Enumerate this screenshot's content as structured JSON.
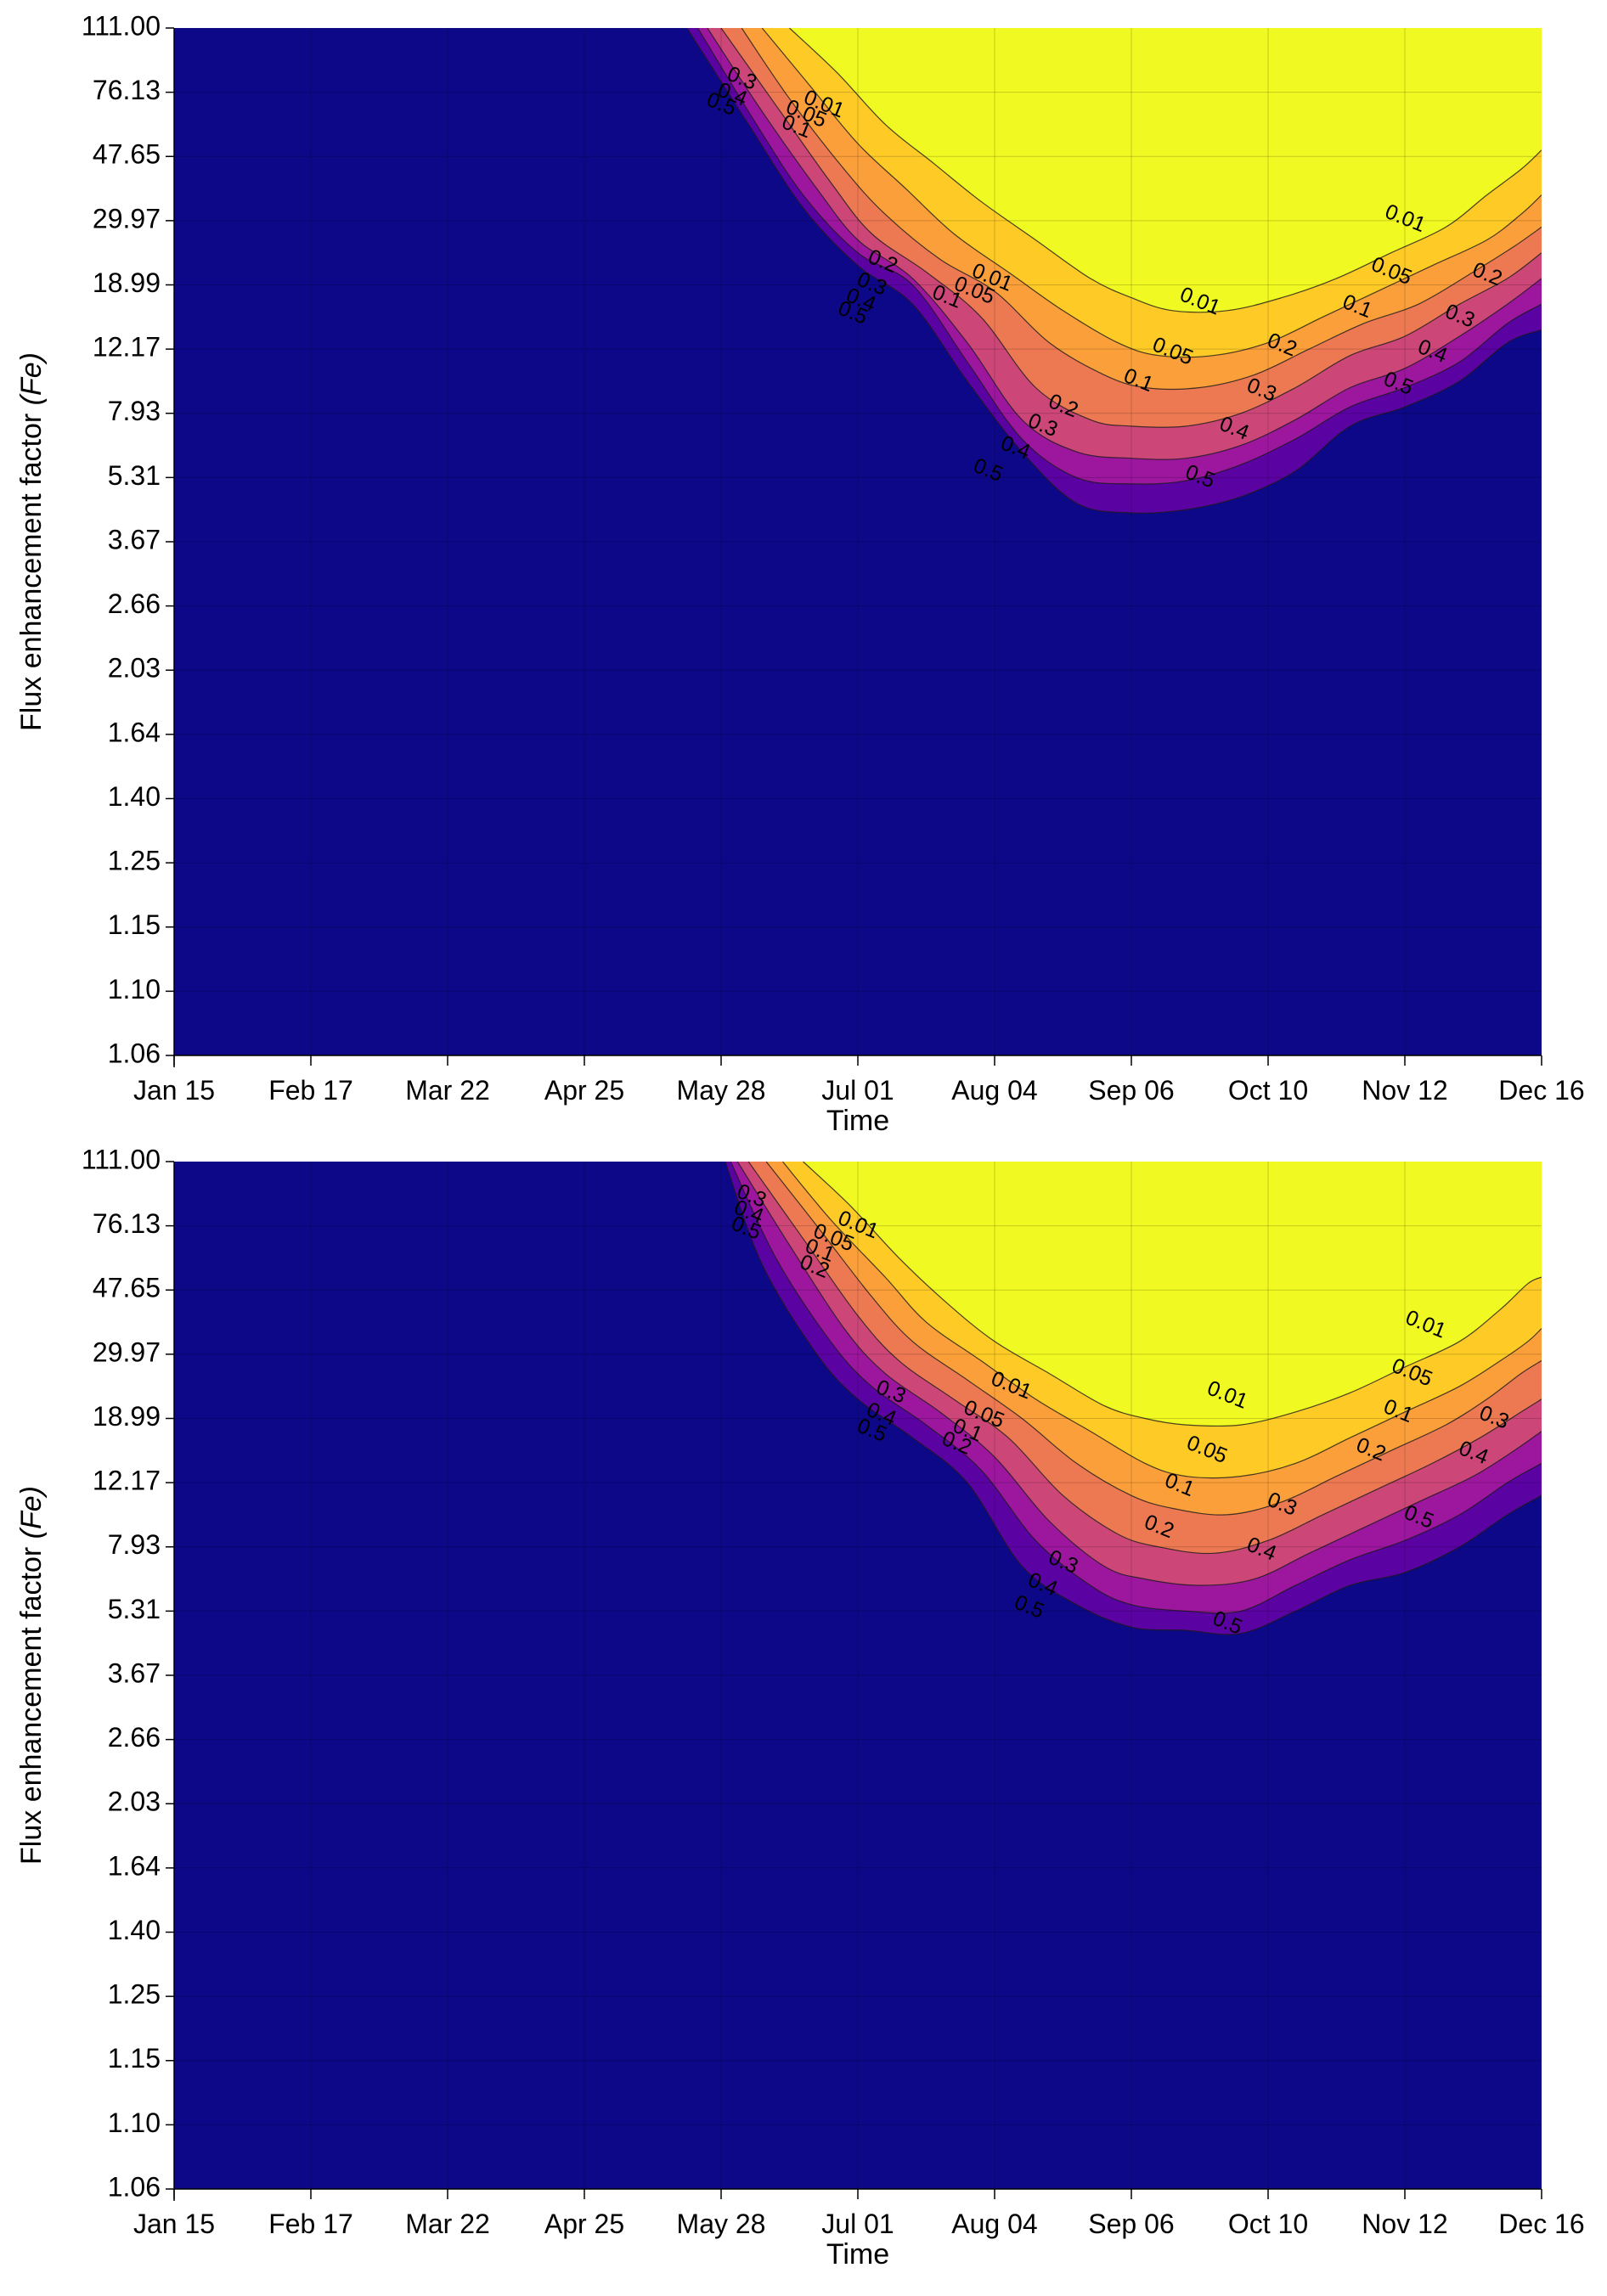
{
  "chart_data": [
    {
      "type": "contour",
      "xlabel": "Time",
      "ylabel": "Flux  enhancement  factor  ",
      "ylabel_var": "(Fe)",
      "x_ticks": [
        "Jan 15",
        "Feb 17",
        "Mar 22",
        "Apr 25",
        "May 28",
        "Jul 01",
        "Aug 04",
        "Sep 06",
        "Oct 10",
        "Nov 12",
        "Dec 16"
      ],
      "y_ticks": [
        "111.00",
        "76.13",
        "47.65",
        "29.97",
        "18.99",
        "12.17",
        "7.93",
        "5.31",
        "3.67",
        "2.66",
        "2.03",
        "1.64",
        "1.40",
        "1.25",
        "1.15",
        "1.10",
        "1.06"
      ],
      "y_scale": "nonlinear (tick labels evenly spaced)",
      "grid": true,
      "contour_levels": [
        0.5,
        0.4,
        0.3,
        0.2,
        0.1,
        0.05,
        0.01
      ],
      "fill_colors": [
        "#0d0887",
        "#5b02a3",
        "#9c179e",
        "#cc4778",
        "#ed7953",
        "#fb9f3a",
        "#fdca26",
        "#f0f921"
      ],
      "contour_boundaries": [
        {
          "level": 0.5,
          "x_idx": [
            3.75,
            4.2,
            4.6,
            5.0,
            5.4,
            5.8,
            6.2,
            6.6,
            7.0,
            7.4,
            7.8,
            8.2,
            8.6,
            9.0,
            9.4,
            9.75,
            10.0
          ],
          "y_idx": [
            0.0,
            1.5,
            2.8,
            3.7,
            4.3,
            5.5,
            6.6,
            7.4,
            7.55,
            7.5,
            7.3,
            6.9,
            6.2,
            5.9,
            5.5,
            4.9,
            4.7
          ]
        },
        {
          "level": 0.4,
          "x_idx": [
            3.83,
            4.2,
            4.6,
            5.0,
            5.4,
            5.8,
            6.2,
            6.6,
            7.0,
            7.4,
            7.8,
            8.2,
            8.6,
            9.0,
            9.4,
            9.75,
            10.0
          ],
          "y_idx": [
            0.0,
            1.3,
            2.6,
            3.5,
            4.0,
            5.2,
            6.4,
            7.0,
            7.1,
            7.05,
            6.8,
            6.4,
            5.9,
            5.6,
            5.2,
            4.6,
            4.3
          ]
        },
        {
          "level": 0.3,
          "x_idx": [
            3.9,
            4.3,
            4.7,
            5.0,
            5.4,
            5.8,
            6.2,
            6.6,
            7.0,
            7.4,
            7.8,
            8.2,
            8.6,
            9.0,
            9.4,
            9.75,
            10.0
          ],
          "y_idx": [
            0.0,
            1.3,
            2.5,
            3.3,
            3.9,
            4.9,
            6.1,
            6.6,
            6.7,
            6.7,
            6.5,
            6.1,
            5.6,
            5.3,
            4.8,
            4.3,
            3.9
          ]
        },
        {
          "level": 0.2,
          "x_idx": [
            4.0,
            4.4,
            4.8,
            5.1,
            5.5,
            5.9,
            6.3,
            6.7,
            7.0,
            7.4,
            7.8,
            8.2,
            8.6,
            9.0,
            9.4,
            9.75,
            10.0
          ],
          "y_idx": [
            0.0,
            1.2,
            2.4,
            3.2,
            3.8,
            4.5,
            5.6,
            6.1,
            6.2,
            6.2,
            6.0,
            5.6,
            5.1,
            4.8,
            4.3,
            3.9,
            3.5
          ]
        },
        {
          "level": 0.1,
          "x_idx": [
            4.15,
            4.5,
            4.9,
            5.2,
            5.6,
            6.0,
            6.4,
            6.8,
            7.1,
            7.5,
            7.9,
            8.3,
            8.7,
            9.1,
            9.5,
            9.8,
            10.0
          ],
          "y_idx": [
            0.0,
            1.1,
            2.2,
            2.9,
            3.6,
            4.1,
            4.9,
            5.4,
            5.6,
            5.6,
            5.4,
            5.0,
            4.6,
            4.3,
            3.8,
            3.4,
            3.1
          ]
        },
        {
          "level": 0.05,
          "x_idx": [
            4.3,
            4.65,
            5.0,
            5.35,
            5.7,
            6.1,
            6.5,
            6.9,
            7.2,
            7.6,
            8.0,
            8.4,
            8.8,
            9.2,
            9.6,
            9.85,
            10.0
          ],
          "y_idx": [
            0.0,
            0.9,
            1.8,
            2.5,
            3.2,
            3.8,
            4.4,
            4.9,
            5.1,
            5.1,
            4.9,
            4.5,
            4.1,
            3.7,
            3.3,
            2.9,
            2.6
          ]
        },
        {
          "level": 0.01,
          "x_idx": [
            4.5,
            4.85,
            5.2,
            5.55,
            5.9,
            6.3,
            6.7,
            7.0,
            7.3,
            7.7,
            8.1,
            8.5,
            8.9,
            9.3,
            9.6,
            9.85,
            10.0
          ],
          "y_idx": [
            0.0,
            0.7,
            1.5,
            2.1,
            2.7,
            3.3,
            3.9,
            4.2,
            4.4,
            4.4,
            4.2,
            3.9,
            3.5,
            3.1,
            2.6,
            2.2,
            1.9
          ]
        }
      ],
      "contour_labels": [
        {
          "text": "0.01",
          "x_idx": 4.75,
          "y_idx": 1.2
        },
        {
          "text": "0.05",
          "x_idx": 4.62,
          "y_idx": 1.35
        },
        {
          "text": "0.1",
          "x_idx": 4.55,
          "y_idx": 1.55
        },
        {
          "text": "0.3",
          "x_idx": 4.15,
          "y_idx": 0.8
        },
        {
          "text": "0.4",
          "x_idx": 4.08,
          "y_idx": 1.05
        },
        {
          "text": "0.5",
          "x_idx": 4.0,
          "y_idx": 1.2
        },
        {
          "text": "0.2",
          "x_idx": 5.18,
          "y_idx": 3.65
        },
        {
          "text": "0.3",
          "x_idx": 5.1,
          "y_idx": 4.0
        },
        {
          "text": "0.4",
          "x_idx": 5.02,
          "y_idx": 4.25
        },
        {
          "text": "0.5",
          "x_idx": 4.96,
          "y_idx": 4.45
        },
        {
          "text": "0.01",
          "x_idx": 5.98,
          "y_idx": 3.9
        },
        {
          "text": "0.05",
          "x_idx": 5.85,
          "y_idx": 4.1
        },
        {
          "text": "0.1",
          "x_idx": 5.65,
          "y_idx": 4.2
        },
        {
          "text": "0.01",
          "x_idx": 7.5,
          "y_idx": 4.27
        },
        {
          "text": "0.05",
          "x_idx": 7.3,
          "y_idx": 5.05
        },
        {
          "text": "0.1",
          "x_idx": 7.05,
          "y_idx": 5.5
        },
        {
          "text": "0.2",
          "x_idx": 6.5,
          "y_idx": 5.9
        },
        {
          "text": "0.3",
          "x_idx": 6.35,
          "y_idx": 6.2
        },
        {
          "text": "0.4",
          "x_idx": 6.15,
          "y_idx": 6.55
        },
        {
          "text": "0.5",
          "x_idx": 5.95,
          "y_idx": 6.9
        },
        {
          "text": "0.2",
          "x_idx": 8.1,
          "y_idx": 4.95
        },
        {
          "text": "0.3",
          "x_idx": 7.95,
          "y_idx": 5.65
        },
        {
          "text": "0.4",
          "x_idx": 7.75,
          "y_idx": 6.25
        },
        {
          "text": "0.5",
          "x_idx": 7.5,
          "y_idx": 7.0
        },
        {
          "text": "0.01",
          "x_idx": 9.0,
          "y_idx": 2.98
        },
        {
          "text": "0.05",
          "x_idx": 8.9,
          "y_idx": 3.8
        },
        {
          "text": "0.1",
          "x_idx": 8.65,
          "y_idx": 4.35
        },
        {
          "text": "0.2",
          "x_idx": 9.6,
          "y_idx": 3.85
        },
        {
          "text": "0.3",
          "x_idx": 9.4,
          "y_idx": 4.5
        },
        {
          "text": "0.4",
          "x_idx": 9.2,
          "y_idx": 5.05
        },
        {
          "text": "0.5",
          "x_idx": 8.95,
          "y_idx": 5.55
        }
      ]
    },
    {
      "type": "contour",
      "xlabel": "Time",
      "ylabel": "Flux  enhancement  factor  ",
      "ylabel_var": "(Fe)",
      "x_ticks": [
        "Jan 15",
        "Feb 17",
        "Mar 22",
        "Apr 25",
        "May 28",
        "Jul 01",
        "Aug 04",
        "Sep 06",
        "Oct 10",
        "Nov 12",
        "Dec 16"
      ],
      "y_ticks": [
        "111.00",
        "76.13",
        "47.65",
        "29.97",
        "18.99",
        "12.17",
        "7.93",
        "5.31",
        "3.67",
        "2.66",
        "2.03",
        "1.64",
        "1.40",
        "1.25",
        "1.15",
        "1.10",
        "1.06"
      ],
      "y_scale": "nonlinear (tick labels evenly spaced)",
      "grid": true,
      "contour_levels": [
        0.5,
        0.4,
        0.3,
        0.2,
        0.1,
        0.05,
        0.01
      ],
      "fill_colors": [
        "#0d0887",
        "#5b02a3",
        "#9c179e",
        "#cc4778",
        "#ed7953",
        "#fb9f3a",
        "#fdca26",
        "#f0f921"
      ],
      "contour_boundaries": [
        {
          "level": 0.5,
          "x_idx": [
            4.03,
            4.3,
            4.7,
            5.0,
            5.4,
            5.8,
            6.2,
            6.6,
            7.0,
            7.4,
            7.8,
            8.2,
            8.6,
            9.0,
            9.4,
            9.75,
            10.0
          ],
          "y_idx": [
            0.0,
            1.6,
            3.0,
            3.7,
            4.3,
            5.0,
            6.3,
            6.9,
            7.25,
            7.3,
            7.35,
            7.0,
            6.6,
            6.4,
            6.0,
            5.5,
            5.2
          ]
        },
        {
          "level": 0.4,
          "x_idx": [
            4.07,
            4.4,
            4.8,
            5.1,
            5.5,
            5.9,
            6.3,
            6.7,
            7.0,
            7.4,
            7.8,
            8.2,
            8.6,
            9.0,
            9.4,
            9.75,
            10.0
          ],
          "y_idx": [
            0.0,
            1.5,
            2.8,
            3.5,
            4.1,
            4.8,
            5.9,
            6.6,
            6.9,
            7.0,
            7.0,
            6.6,
            6.2,
            5.9,
            5.5,
            5.0,
            4.7
          ]
        },
        {
          "level": 0.3,
          "x_idx": [
            4.12,
            4.5,
            4.9,
            5.2,
            5.6,
            6.0,
            6.4,
            6.8,
            7.1,
            7.5,
            7.9,
            8.3,
            8.7,
            9.1,
            9.5,
            9.8,
            10.0
          ],
          "y_idx": [
            0.0,
            1.3,
            2.6,
            3.3,
            3.9,
            4.6,
            5.6,
            6.3,
            6.5,
            6.6,
            6.5,
            6.1,
            5.7,
            5.3,
            4.9,
            4.5,
            4.2
          ]
        },
        {
          "level": 0.2,
          "x_idx": [
            4.2,
            4.6,
            5.0,
            5.3,
            5.7,
            6.1,
            6.5,
            6.9,
            7.2,
            7.6,
            8.0,
            8.4,
            8.8,
            9.2,
            9.55,
            9.85,
            10.0
          ],
          "y_idx": [
            0.0,
            1.2,
            2.4,
            3.1,
            3.7,
            4.3,
            5.2,
            5.8,
            6.0,
            6.1,
            5.9,
            5.5,
            5.1,
            4.7,
            4.3,
            3.9,
            3.7
          ]
        },
        {
          "level": 0.1,
          "x_idx": [
            4.33,
            4.7,
            5.1,
            5.4,
            5.8,
            6.2,
            6.6,
            7.0,
            7.3,
            7.7,
            8.1,
            8.5,
            8.9,
            9.3,
            9.6,
            9.85,
            10.0
          ],
          "y_idx": [
            0.0,
            1.0,
            2.1,
            2.8,
            3.4,
            4.0,
            4.7,
            5.2,
            5.4,
            5.5,
            5.3,
            4.9,
            4.5,
            4.1,
            3.7,
            3.3,
            3.1
          ]
        },
        {
          "level": 0.05,
          "x_idx": [
            4.45,
            4.8,
            5.2,
            5.5,
            5.9,
            6.3,
            6.7,
            7.1,
            7.4,
            7.8,
            8.2,
            8.6,
            9.0,
            9.4,
            9.7,
            9.9,
            10.0
          ],
          "y_idx": [
            0.0,
            0.9,
            1.8,
            2.5,
            3.1,
            3.7,
            4.2,
            4.7,
            4.9,
            4.9,
            4.7,
            4.3,
            3.9,
            3.5,
            3.1,
            2.8,
            2.6
          ]
        },
        {
          "level": 0.01,
          "x_idx": [
            4.6,
            4.95,
            5.3,
            5.65,
            6.0,
            6.4,
            6.8,
            7.1,
            7.4,
            7.8,
            8.2,
            8.6,
            9.0,
            9.4,
            9.7,
            9.9,
            10.0
          ],
          "y_idx": [
            0.0,
            0.7,
            1.5,
            2.2,
            2.8,
            3.3,
            3.8,
            4.0,
            4.1,
            4.1,
            3.9,
            3.6,
            3.2,
            2.8,
            2.3,
            1.9,
            1.8
          ]
        }
      ],
      "contour_labels": [
        {
          "text": "0.01",
          "x_idx": 5.0,
          "y_idx": 1.0
        },
        {
          "text": "0.05",
          "x_idx": 4.82,
          "y_idx": 1.2
        },
        {
          "text": "0.1",
          "x_idx": 4.72,
          "y_idx": 1.4
        },
        {
          "text": "0.2",
          "x_idx": 4.68,
          "y_idx": 1.65
        },
        {
          "text": "0.3",
          "x_idx": 4.22,
          "y_idx": 0.55
        },
        {
          "text": "0.4",
          "x_idx": 4.2,
          "y_idx": 0.8
        },
        {
          "text": "0.5",
          "x_idx": 4.18,
          "y_idx": 1.05
        },
        {
          "text": "0.3",
          "x_idx": 5.24,
          "y_idx": 3.6
        },
        {
          "text": "0.4",
          "x_idx": 5.17,
          "y_idx": 3.95
        },
        {
          "text": "0.5",
          "x_idx": 5.1,
          "y_idx": 4.2
        },
        {
          "text": "0.01",
          "x_idx": 6.12,
          "y_idx": 3.5
        },
        {
          "text": "0.05",
          "x_idx": 5.92,
          "y_idx": 3.95
        },
        {
          "text": "0.1",
          "x_idx": 5.8,
          "y_idx": 4.2
        },
        {
          "text": "0.2",
          "x_idx": 5.72,
          "y_idx": 4.4
        },
        {
          "text": "0.01",
          "x_idx": 7.7,
          "y_idx": 3.65
        },
        {
          "text": "0.05",
          "x_idx": 7.55,
          "y_idx": 4.5
        },
        {
          "text": "0.1",
          "x_idx": 7.35,
          "y_idx": 5.05
        },
        {
          "text": "0.2",
          "x_idx": 7.2,
          "y_idx": 5.7
        },
        {
          "text": "0.3",
          "x_idx": 6.5,
          "y_idx": 6.25
        },
        {
          "text": "0.4",
          "x_idx": 6.35,
          "y_idx": 6.6
        },
        {
          "text": "0.5",
          "x_idx": 6.25,
          "y_idx": 6.95
        },
        {
          "text": "0.3",
          "x_idx": 8.1,
          "y_idx": 5.35
        },
        {
          "text": "0.4",
          "x_idx": 7.95,
          "y_idx": 6.05
        },
        {
          "text": "0.5",
          "x_idx": 7.7,
          "y_idx": 7.2
        },
        {
          "text": "0.01",
          "x_idx": 9.15,
          "y_idx": 2.55
        },
        {
          "text": "0.05",
          "x_idx": 9.05,
          "y_idx": 3.3
        },
        {
          "text": "0.1",
          "x_idx": 8.95,
          "y_idx": 3.9
        },
        {
          "text": "0.2",
          "x_idx": 8.75,
          "y_idx": 4.5
        },
        {
          "text": "0.3",
          "x_idx": 9.65,
          "y_idx": 4.0
        },
        {
          "text": "0.4",
          "x_idx": 9.5,
          "y_idx": 4.55
        },
        {
          "text": "0.5",
          "x_idx": 9.1,
          "y_idx": 5.55
        }
      ]
    }
  ]
}
